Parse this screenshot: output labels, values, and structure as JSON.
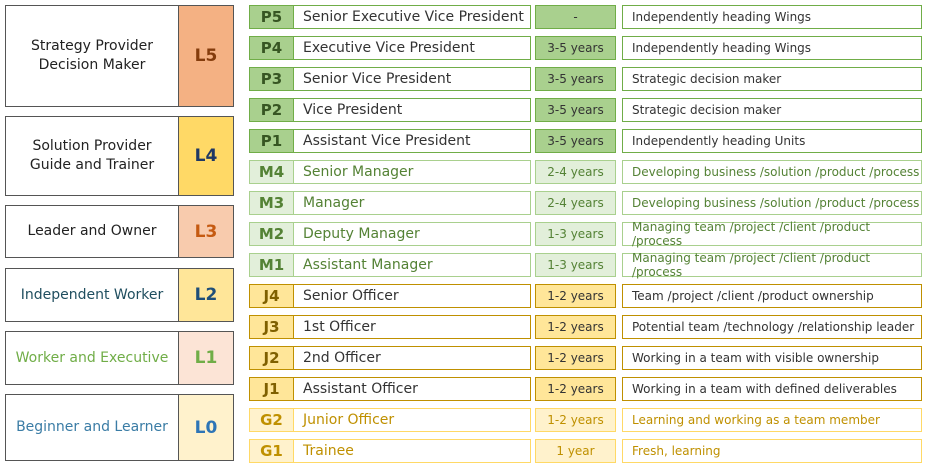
{
  "levels": [
    {
      "code": "L5",
      "label": [
        "Strategy Provider",
        "Decision Maker"
      ]
    },
    {
      "code": "L4",
      "label": [
        "Solution Provider",
        "Guide and Trainer"
      ]
    },
    {
      "code": "L3",
      "label": [
        "Leader and Owner"
      ]
    },
    {
      "code": "L2",
      "label": [
        "Independent Worker"
      ]
    },
    {
      "code": "L1",
      "label": [
        "Worker and Executive"
      ]
    },
    {
      "code": "L0",
      "label": [
        "Beginner and Learner"
      ]
    }
  ],
  "rows": [
    {
      "code": "P5",
      "title": "Senior Executive Vice President",
      "years": "-",
      "description": "Independently heading Wings"
    },
    {
      "code": "P4",
      "title": "Executive Vice President",
      "years": "3-5 years",
      "description": "Independently heading Wings"
    },
    {
      "code": "P3",
      "title": "Senior Vice President",
      "years": "3-5 years",
      "description": "Strategic decision maker"
    },
    {
      "code": "P2",
      "title": "Vice President",
      "years": "3-5 years",
      "description": "Strategic decision maker"
    },
    {
      "code": "P1",
      "title": "Assistant Vice President",
      "years": "3-5 years",
      "description": "Independently heading Units"
    },
    {
      "code": "M4",
      "title": "Senior Manager",
      "years": "2-4 years",
      "description": "Developing business /solution /product /process"
    },
    {
      "code": "M3",
      "title": "Manager",
      "years": "2-4 years",
      "description": "Developing business /solution /product /process"
    },
    {
      "code": "M2",
      "title": "Deputy Manager",
      "years": "1-3 years",
      "description": "Managing team /project /client /product /process"
    },
    {
      "code": "M1",
      "title": "Assistant Manager",
      "years": "1-3 years",
      "description": "Managing team /project /client /product /process"
    },
    {
      "code": "J4",
      "title": "Senior Officer",
      "years": "1-2 years",
      "description": "Team /project /client /product ownership"
    },
    {
      "code": "J3",
      "title": "1st Officer",
      "years": "1-2 years",
      "description": "Potential team /technology /relationship leader"
    },
    {
      "code": "J2",
      "title": "2nd Officer",
      "years": "1-2 years",
      "description": "Working in a team with visible ownership"
    },
    {
      "code": "J1",
      "title": "Assistant Officer",
      "years": "1-2 years",
      "description": "Working in a team with defined deliverables"
    },
    {
      "code": "G2",
      "title": "Junior Officer",
      "years": "1-2 years",
      "description": "Learning and working as a team member"
    },
    {
      "code": "G1",
      "title": "Trainee",
      "years": "1 year",
      "description": "Fresh, learning"
    }
  ]
}
